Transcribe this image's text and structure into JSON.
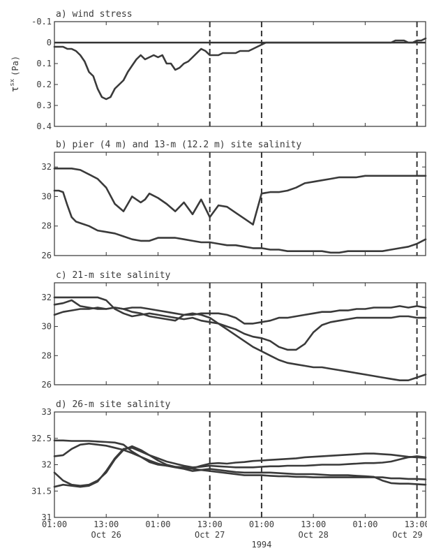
{
  "chart_data": [
    {
      "type": "line",
      "title": "a) wind stress",
      "ylabel": "τ^sx (Pa)",
      "ylabel_main": "τ",
      "ylabel_sup": "sx",
      "ylabel_unit": "(Pa)",
      "ylim": [
        -0.1,
        0.4
      ],
      "y_inverted": true,
      "yticks": [
        -0.1,
        0,
        0.1,
        0.2,
        0.3,
        0.4
      ],
      "ytick_labels": [
        "-0.1",
        "0",
        "0.1",
        "0.2",
        "0.3",
        "0.4"
      ],
      "reference_line_y": 0,
      "series": [
        {
          "x": [
            0,
            1,
            2,
            3,
            4,
            5,
            6,
            7,
            8,
            9,
            10,
            11,
            12,
            13,
            14,
            15,
            16,
            17,
            18,
            19,
            20,
            21,
            22,
            23,
            24,
            25,
            26,
            27,
            28,
            29,
            30,
            31,
            32,
            33,
            34,
            35,
            36,
            37,
            38,
            39,
            40,
            41,
            42,
            43,
            44,
            45,
            46,
            47,
            48,
            49,
            50,
            51,
            52,
            53,
            54,
            55,
            56,
            57,
            58,
            59,
            60,
            61,
            62,
            63,
            64,
            65,
            66,
            67,
            68,
            69,
            70,
            71,
            72,
            73,
            74,
            75,
            76,
            77,
            78,
            79,
            80,
            81,
            82,
            83,
            84,
            85,
            86
          ],
          "values": [
            0.02,
            0.02,
            0.02,
            0.03,
            0.03,
            0.04,
            0.06,
            0.09,
            0.14,
            0.16,
            0.22,
            0.26,
            0.27,
            0.26,
            0.22,
            0.2,
            0.18,
            0.14,
            0.11,
            0.08,
            0.06,
            0.08,
            0.07,
            0.06,
            0.07,
            0.06,
            0.1,
            0.1,
            0.13,
            0.12,
            0.1,
            0.09,
            0.07,
            0.05,
            0.03,
            0.04,
            0.06,
            0.06,
            0.06,
            0.05,
            0.05,
            0.05,
            0.05,
            0.04,
            0.04,
            0.04,
            0.03,
            0.02,
            0.01,
            0.0,
            0.0,
            0.0,
            0.0,
            0.0,
            0.0,
            0.0,
            0.0,
            0.0,
            0.0,
            0.0,
            0.0,
            0.0,
            0.0,
            0.0,
            0.0,
            0.0,
            0.0,
            0.0,
            0.0,
            0.0,
            0.0,
            0.0,
            0.0,
            0.0,
            0.0,
            0.0,
            0.0,
            0.0,
            0.0,
            -0.01,
            -0.01,
            -0.01,
            0.0,
            0.0,
            -0.01,
            -0.01,
            -0.02
          ]
        }
      ]
    },
    {
      "type": "line",
      "title": "b) pier (4 m) and 13-m  (12.2 m) site salinity",
      "ylim": [
        26,
        33
      ],
      "yticks": [
        26,
        28,
        30,
        32
      ],
      "ytick_labels": [
        "26",
        "28",
        "30",
        "32"
      ],
      "series": [
        {
          "x": [
            0,
            2,
            4,
            6,
            8,
            10,
            12,
            14,
            16,
            17,
            18,
            19,
            20,
            21,
            22,
            24,
            26,
            28,
            30,
            32,
            34,
            36,
            38,
            40,
            42,
            44,
            46,
            48,
            50,
            52,
            54,
            56,
            58,
            60,
            62,
            64,
            66,
            68,
            70,
            72,
            74,
            76,
            78,
            80,
            82,
            84,
            86
          ],
          "values": [
            31.9,
            31.9,
            31.9,
            31.8,
            31.5,
            31.2,
            30.6,
            29.5,
            29.0,
            29.5,
            30.0,
            29.8,
            29.6,
            29.8,
            30.2,
            29.9,
            29.5,
            29.0,
            29.6,
            28.8,
            29.8,
            28.6,
            29.4,
            29.3,
            28.9,
            28.5,
            28.1,
            30.2,
            30.3,
            30.3,
            30.4,
            30.6,
            30.9,
            31.0,
            31.1,
            31.2,
            31.3,
            31.3,
            31.3,
            31.4,
            31.4,
            31.4,
            31.4,
            31.4,
            31.4,
            31.4,
            31.4
          ]
        },
        {
          "x": [
            0,
            1,
            2,
            3,
            4,
            5,
            6,
            8,
            10,
            12,
            14,
            16,
            18,
            20,
            22,
            24,
            26,
            28,
            30,
            32,
            34,
            36,
            38,
            40,
            42,
            44,
            46,
            48,
            50,
            52,
            54,
            56,
            58,
            60,
            62,
            64,
            66,
            68,
            70,
            72,
            74,
            76,
            78,
            80,
            82,
            84,
            86
          ],
          "values": [
            30.4,
            30.4,
            30.3,
            29.4,
            28.6,
            28.3,
            28.2,
            28.0,
            27.7,
            27.6,
            27.5,
            27.3,
            27.1,
            27.0,
            27.0,
            27.2,
            27.2,
            27.2,
            27.1,
            27.0,
            26.9,
            26.9,
            26.8,
            26.7,
            26.7,
            26.6,
            26.5,
            26.5,
            26.4,
            26.4,
            26.3,
            26.3,
            26.3,
            26.3,
            26.3,
            26.2,
            26.2,
            26.3,
            26.3,
            26.3,
            26.3,
            26.3,
            26.4,
            26.5,
            26.6,
            26.8,
            27.1
          ]
        }
      ]
    },
    {
      "type": "line",
      "title": "c) 21-m site salinity",
      "ylim": [
        26,
        33
      ],
      "yticks": [
        26,
        28,
        30,
        32
      ],
      "ytick_labels": [
        "26",
        "28",
        "30",
        "32"
      ],
      "series": [
        {
          "x": [
            0,
            2,
            4,
            6,
            8,
            10,
            12,
            14,
            16,
            18,
            20,
            22,
            24,
            26,
            28,
            30,
            32,
            34,
            36,
            38,
            40,
            42,
            44,
            46,
            48,
            50,
            52,
            54,
            56,
            58,
            60,
            62,
            64,
            66,
            68,
            70,
            72,
            74,
            76,
            78,
            80,
            82,
            84,
            86
          ],
          "values": [
            32.0,
            32.0,
            32.0,
            32.0,
            32.0,
            32.0,
            31.8,
            31.2,
            30.9,
            30.7,
            30.8,
            30.9,
            30.8,
            30.7,
            30.6,
            30.5,
            30.6,
            30.4,
            30.3,
            30.2,
            29.8,
            29.4,
            29.0,
            28.6,
            28.3,
            28.0,
            27.7,
            27.5,
            27.4,
            27.3,
            27.2,
            27.2,
            27.1,
            27.0,
            26.9,
            26.8,
            26.7,
            26.6,
            26.5,
            26.4,
            26.3,
            26.3,
            26.5,
            26.7
          ]
        },
        {
          "x": [
            0,
            2,
            4,
            6,
            8,
            10,
            12,
            14,
            16,
            18,
            20,
            22,
            24,
            26,
            28,
            30,
            32,
            34,
            36,
            38,
            40,
            42,
            44,
            46,
            48,
            50,
            52,
            54,
            56,
            58,
            60,
            62,
            64,
            66,
            68,
            70,
            72,
            74,
            76,
            78,
            80,
            82,
            84,
            86
          ],
          "values": [
            31.5,
            31.6,
            31.8,
            31.4,
            31.3,
            31.2,
            31.2,
            31.3,
            31.2,
            31.0,
            30.9,
            30.7,
            30.6,
            30.5,
            30.4,
            30.8,
            30.9,
            30.8,
            30.6,
            30.2,
            30.0,
            29.8,
            29.5,
            29.3,
            29.2,
            29.0,
            28.6,
            28.4,
            28.4,
            28.8,
            29.6,
            30.1,
            30.3,
            30.4,
            30.5,
            30.6,
            30.6,
            30.6,
            30.6,
            30.6,
            30.7,
            30.7,
            30.6,
            30.6
          ]
        },
        {
          "x": [
            0,
            2,
            4,
            6,
            8,
            10,
            12,
            14,
            16,
            18,
            20,
            22,
            24,
            26,
            28,
            30,
            32,
            34,
            36,
            38,
            40,
            42,
            44,
            46,
            48,
            50,
            52,
            54,
            56,
            58,
            60,
            62,
            64,
            66,
            68,
            70,
            72,
            74,
            76,
            78,
            80,
            82,
            84,
            86
          ],
          "values": [
            30.8,
            31.0,
            31.1,
            31.2,
            31.2,
            31.3,
            31.2,
            31.3,
            31.2,
            31.3,
            31.3,
            31.2,
            31.1,
            31.0,
            30.9,
            30.8,
            30.8,
            30.9,
            30.9,
            30.9,
            30.8,
            30.6,
            30.2,
            30.2,
            30.3,
            30.4,
            30.6,
            30.6,
            30.7,
            30.8,
            30.9,
            31.0,
            31.0,
            31.1,
            31.1,
            31.2,
            31.2,
            31.3,
            31.3,
            31.3,
            31.4,
            31.3,
            31.4,
            31.3
          ]
        }
      ]
    },
    {
      "type": "line",
      "title": "d) 26-m site salinity",
      "ylim": [
        31,
        33
      ],
      "yticks": [
        31,
        31.5,
        32,
        32.5,
        33
      ],
      "ytick_labels": [
        "31",
        "31.5",
        "32",
        "32.5",
        "33"
      ],
      "series": [
        {
          "x": [
            0,
            2,
            4,
            6,
            8,
            10,
            12,
            14,
            16,
            18,
            20,
            22,
            24,
            26,
            28,
            30,
            32,
            34,
            36,
            38,
            40,
            42,
            44,
            46,
            48,
            50,
            52,
            54,
            56,
            58,
            60,
            62,
            64,
            66,
            68,
            70,
            72,
            74,
            76,
            78,
            80,
            82,
            84,
            86
          ],
          "values": [
            32.46,
            32.46,
            32.45,
            32.45,
            32.45,
            32.44,
            32.43,
            32.42,
            32.38,
            32.25,
            32.15,
            32.05,
            32.0,
            31.98,
            31.95,
            31.92,
            31.88,
            31.9,
            31.92,
            31.9,
            31.88,
            31.86,
            31.85,
            31.85,
            31.85,
            31.85,
            31.84,
            31.83,
            31.82,
            31.82,
            31.82,
            31.81,
            31.8,
            31.8,
            31.8,
            31.79,
            31.78,
            31.77,
            31.7,
            31.65,
            31.64,
            31.64,
            31.63,
            31.62
          ]
        },
        {
          "x": [
            0,
            2,
            4,
            6,
            8,
            10,
            12,
            14,
            16,
            18,
            20,
            22,
            24,
            26,
            28,
            30,
            32,
            34,
            36,
            38,
            40,
            42,
            44,
            46,
            48,
            50,
            52,
            54,
            56,
            58,
            60,
            62,
            64,
            66,
            68,
            70,
            72,
            74,
            76,
            78,
            80,
            82,
            84,
            86
          ],
          "values": [
            32.16,
            32.18,
            32.3,
            32.38,
            32.4,
            32.38,
            32.36,
            32.32,
            32.28,
            32.22,
            32.15,
            32.08,
            32.02,
            31.98,
            31.96,
            31.95,
            31.93,
            31.98,
            32.02,
            32.03,
            32.02,
            32.04,
            32.05,
            32.07,
            32.08,
            32.09,
            32.1,
            32.11,
            32.12,
            32.14,
            32.15,
            32.16,
            32.17,
            32.18,
            32.19,
            32.2,
            32.21,
            32.21,
            32.2,
            32.19,
            32.17,
            32.15,
            32.14,
            32.13
          ]
        },
        {
          "x": [
            0,
            2,
            4,
            6,
            8,
            10,
            12,
            14,
            16,
            18,
            20,
            22,
            24,
            26,
            28,
            30,
            32,
            34,
            36,
            38,
            40,
            42,
            44,
            46,
            48,
            50,
            52,
            54,
            56,
            58,
            60,
            62,
            64,
            66,
            68,
            70,
            72,
            74,
            76,
            78,
            80,
            82,
            84,
            86
          ],
          "values": [
            31.85,
            31.7,
            31.62,
            31.6,
            31.62,
            31.7,
            31.85,
            32.1,
            32.28,
            32.35,
            32.28,
            32.18,
            32.08,
            32.0,
            31.96,
            31.94,
            31.92,
            31.9,
            31.88,
            31.86,
            31.84,
            31.82,
            31.8,
            31.8,
            31.8,
            31.79,
            31.78,
            31.78,
            31.77,
            31.77,
            31.76,
            31.76,
            31.76,
            31.76,
            31.76,
            31.76,
            31.76,
            31.76,
            31.76,
            31.74,
            31.74,
            31.73,
            31.73,
            31.72
          ]
        },
        {
          "x": [
            0,
            2,
            4,
            6,
            8,
            10,
            12,
            14,
            16,
            18,
            20,
            22,
            24,
            26,
            28,
            30,
            32,
            34,
            36,
            38,
            40,
            42,
            44,
            46,
            48,
            50,
            52,
            54,
            56,
            58,
            60,
            62,
            64,
            66,
            68,
            70,
            72,
            74,
            76,
            78,
            80,
            82,
            84,
            86
          ],
          "values": [
            31.58,
            31.62,
            31.6,
            31.58,
            31.6,
            31.68,
            31.88,
            32.12,
            32.3,
            32.32,
            32.25,
            32.18,
            32.12,
            32.06,
            32.02,
            31.98,
            31.95,
            31.96,
            31.98,
            31.97,
            31.96,
            31.95,
            31.95,
            31.95,
            31.96,
            31.97,
            31.97,
            31.98,
            31.98,
            31.98,
            31.99,
            32.0,
            32.0,
            32.0,
            32.01,
            32.02,
            32.03,
            32.03,
            32.04,
            32.06,
            32.1,
            32.14,
            32.16,
            32.14
          ]
        }
      ]
    }
  ],
  "x_axis": {
    "range_hours": [
      0,
      86
    ],
    "tick_positions_hours": [
      0,
      12,
      24,
      36,
      48,
      60,
      72,
      84
    ],
    "tick_labels": [
      "01:00",
      "13:00",
      "01:00",
      "13:00",
      "01:00",
      "13:00",
      "01:00",
      "13:00"
    ],
    "date_labels": [
      "Oct 26",
      "Oct 27",
      "Oct 28",
      "Oct 29"
    ],
    "date_positions_hours": [
      12,
      36,
      60,
      84
    ],
    "year_label": "1994"
  },
  "event_lines_hours": [
    36,
    48,
    84
  ]
}
